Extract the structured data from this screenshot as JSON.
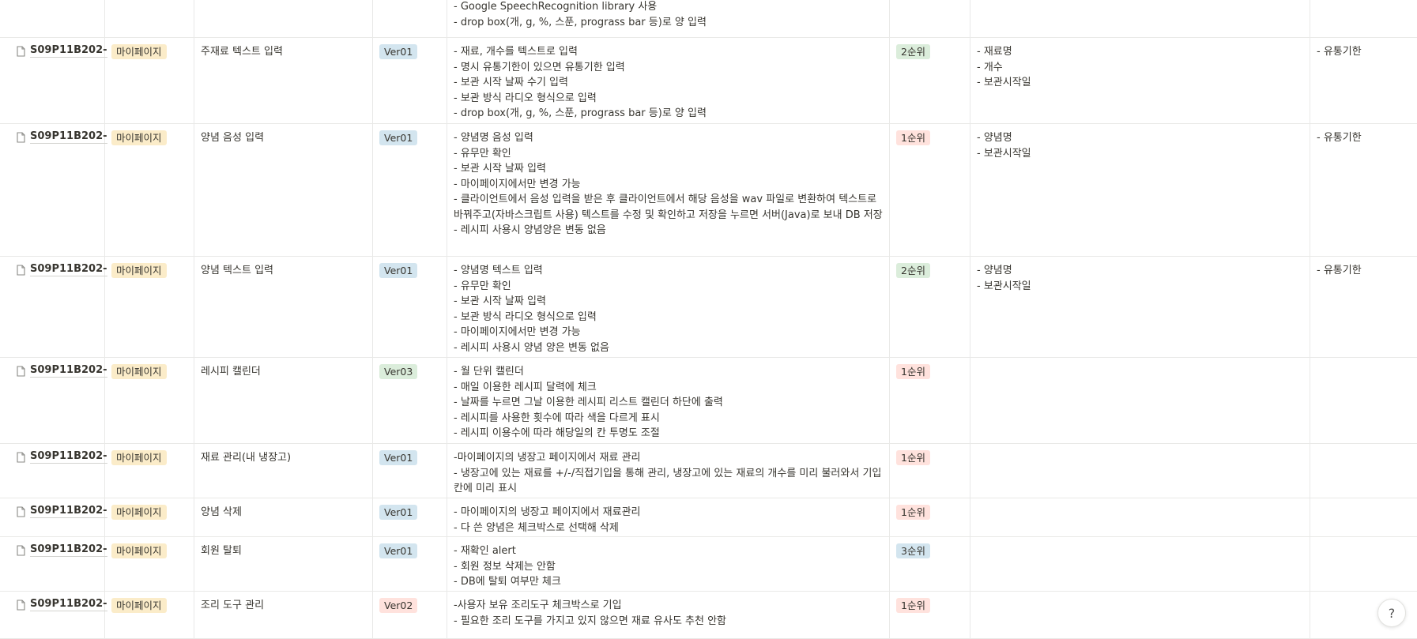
{
  "colors": {
    "category_bg": "#fbecc9",
    "ver_blue_bg": "#d3e5ef",
    "ver_green_bg": "#dbeddb",
    "ver_red_bg": "#ffe2dd",
    "prio_green_bg": "#dbeddb",
    "prio_red_bg": "#ffe2dd",
    "prio_blue_bg": "#d3e5ef"
  },
  "partial_row": {
    "lines": [
      "- Google SpeechRecognition library 사용",
      "- drop box(개, g, %, 스푼, prograss bar 등)로 양 입력"
    ]
  },
  "rows": [
    {
      "id": "S09P11B202-",
      "category": "마이페이지",
      "feature": "주재료 텍스트 입력",
      "version": "Ver01",
      "desc": [
        "- 재료, 개수를 텍스트로 입력",
        "- 명시 유통기한이 있으면 유통기한 입력",
        "- 보관 시작 날짜 수기 입력",
        "- 보관 방식 라디오 형식으로 입력",
        "- drop box(개, g, %, 스푼, prograss bar 등)로 양 입력"
      ],
      "priority": "2순위",
      "fields": [
        "- 재료명",
        "- 개수",
        "- 보관시작일"
      ],
      "extra": "- 유통기한"
    },
    {
      "id": "S09P11B202-",
      "category": "마이페이지",
      "feature": "양념 음성 입력",
      "version": "Ver01",
      "desc": [
        "- 양념명 음성 입력",
        "- 유무만 확인",
        "- 보관 시작 날짜 입력",
        "- 마이페이지에서만 변경 가능",
        "- 클라이언트에서 음성 입력을 받은 후 클라이언트에서 해당 음성을 wav 파일로 변환하여 텍스트로 바꿔주고(자바스크립트 사용) 텍스트를 수정 및 확인하고 저장을 누르면 서버(Java)로 보내 DB 저장",
        "- 레시피 사용시 양념양은 변동 없음"
      ],
      "priority": "1순위",
      "fields": [
        "- 양념명",
        "- 보관시작일"
      ],
      "extra": "- 유통기한"
    },
    {
      "id": "S09P11B202-",
      "category": "마이페이지",
      "feature": "양념 텍스트 입력",
      "version": "Ver01",
      "desc": [
        "- 양념명 텍스트 입력",
        "- 유무만 확인",
        "- 보관 시작 날짜 입력",
        "- 보관 방식 라디오 형식으로 입력",
        "- 마이페이지에서만 변경 가능",
        "- 레시피 사용시 양념 양은 변동 없음"
      ],
      "priority": "2순위",
      "fields": [
        "- 양념명",
        "- 보관시작일"
      ],
      "extra": "- 유통기한"
    },
    {
      "id": "S09P11B202-",
      "category": "마이페이지",
      "feature": "레시피 캘린더",
      "version": "Ver03",
      "desc": [
        "- 월 단위 캘린더",
        "- 매일 이용한 레시피 달력에 체크",
        "- 날짜를 누르면 그날 이용한 레시피 리스트 캘린더 하단에 출력",
        "- 레시피를 사용한 횟수에 따라 색을 다르게 표시",
        "- 레시피 이용수에 따라 해당일의 칸 투명도 조절"
      ],
      "priority": "1순위",
      "fields": [],
      "extra": ""
    },
    {
      "id": "S09P11B202-",
      "category": "마이페이지",
      "feature": "재료 관리(내 냉장고)",
      "version": "Ver01",
      "desc": [
        "-마이페이지의 냉장고 페이지에서 재료 관리",
        "- 냉장고에 있는 재료를 +/-/직접기입을 통해 관리, 냉장고에 있는 재료의 개수를 미리 불러와서 기입칸에 미리 표시"
      ],
      "priority": "1순위",
      "fields": [],
      "extra": ""
    },
    {
      "id": "S09P11B202-",
      "category": "마이페이지",
      "feature": "양념 삭제",
      "version": "Ver01",
      "desc": [
        "- 마이페이지의 냉장고 페이지에서 재료관리",
        "- 다 쓴 양념은 체크박스로 선택해 삭제"
      ],
      "priority": "1순위",
      "fields": [],
      "extra": ""
    },
    {
      "id": "S09P11B202-",
      "category": "마이페이지",
      "feature": "회원 탈퇴",
      "version": "Ver01",
      "desc": [
        "- 재확인 alert",
        "- 회원 정보 삭제는 안함",
        "- DB에 탈퇴 여부만 체크"
      ],
      "priority": "3순위",
      "fields": [],
      "extra": ""
    },
    {
      "id": "S09P11B202-",
      "category": "마이페이지",
      "feature": "조리 도구 관리",
      "version": "Ver02",
      "desc": [
        "-사용자 보유 조리도구 체크박스로 기입",
        "- 필요한 조리 도구를 가지고 있지 않으면 재료 유사도 추천 안함"
      ],
      "priority": "1순위",
      "fields": [],
      "extra": ""
    }
  ],
  "help_button": {
    "label": "?"
  }
}
